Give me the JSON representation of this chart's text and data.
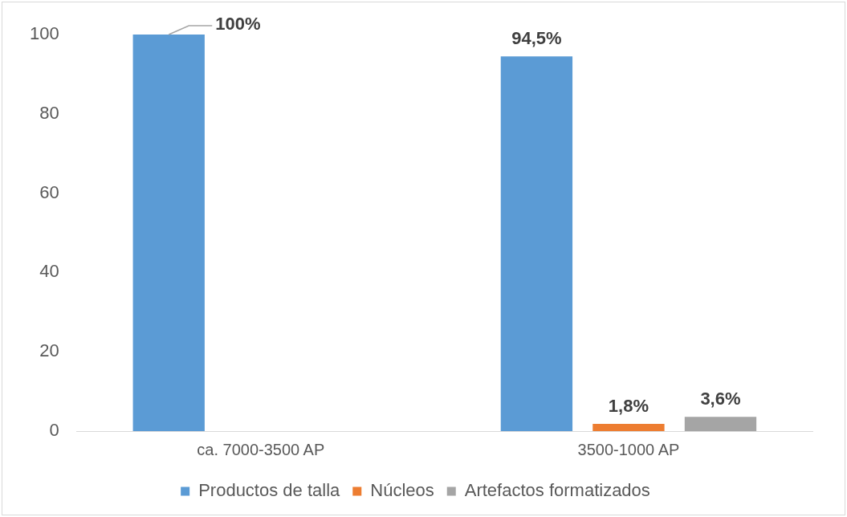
{
  "chart_data": {
    "type": "bar",
    "categories": [
      "ca. 7000-3500 AP",
      "3500-1000 AP"
    ],
    "series": [
      {
        "name": "Productos de talla",
        "color": "#5b9bd5",
        "values": [
          100,
          94.5
        ],
        "value_labels": [
          "100%",
          "94,5%"
        ]
      },
      {
        "name": "Núcleos",
        "color": "#ed7d31",
        "values": [
          null,
          1.8
        ],
        "value_labels": [
          null,
          "1,8%"
        ]
      },
      {
        "name": "Artefactos formatizados",
        "color": "#a5a5a5",
        "values": [
          null,
          3.6
        ],
        "value_labels": [
          null,
          "3,6%"
        ]
      }
    ],
    "ylim": [
      0,
      100
    ],
    "yticks": [
      0,
      20,
      40,
      60,
      80,
      100
    ],
    "grid": false,
    "legend": "bottom"
  }
}
